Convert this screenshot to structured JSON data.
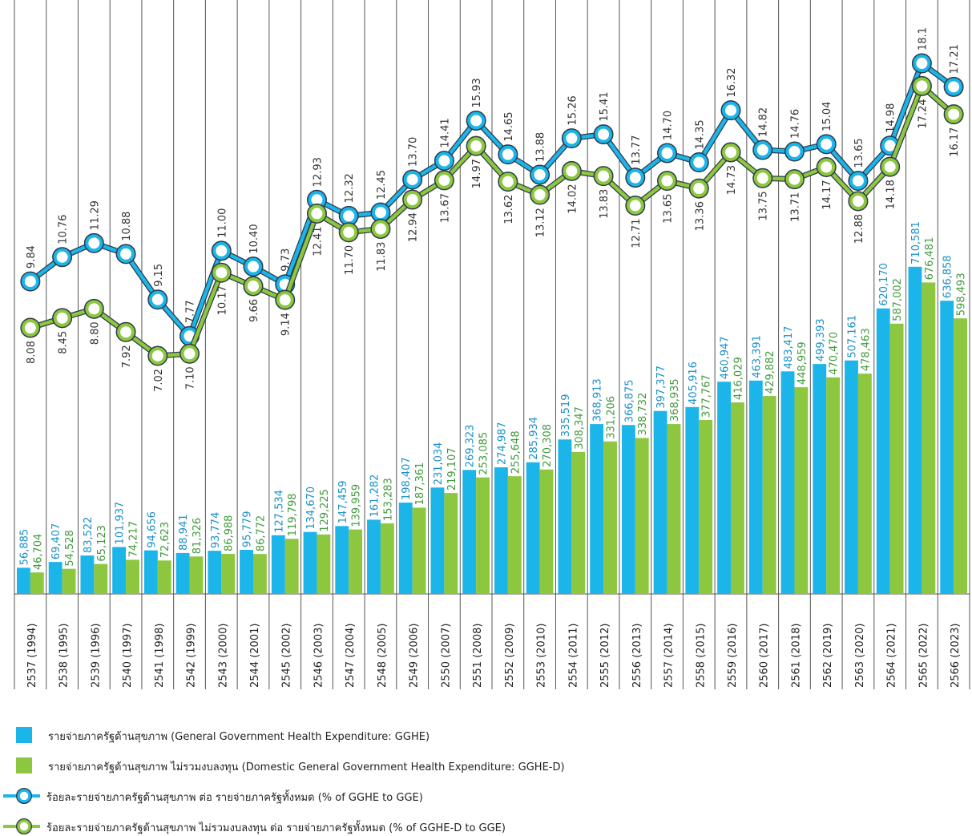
{
  "chart_data": {
    "type": "bar",
    "categories": [
      "2537 (1994)",
      "2538 (1995)",
      "2539 (1996)",
      "2540 (1997)",
      "2541 (1998)",
      "2542 (1999)",
      "2543 (2000)",
      "2544 (2001)",
      "2545 (2002)",
      "2546 (2003)",
      "2547 (2004)",
      "2548 (2005)",
      "2549 (2006)",
      "2550 (2007)",
      "2551 (2008)",
      "2552 (2009)",
      "2553 (2010)",
      "2554 (2011)",
      "2555 (2012)",
      "2556 (2013)",
      "2557 (2014)",
      "2558 (2015)",
      "2559 (2016)",
      "2560 (2017)",
      "2561 (2018)",
      "2562 (2019)",
      "2563 (2020)",
      "2564 (2021)",
      "2565 (2022)",
      "2566 (2023)"
    ],
    "ylim": [
      0,
      1290000
    ],
    "y2lim": [
      -2,
      20.5
    ],
    "series": [
      {
        "name": "รายจ่ายภาครัฐด้านสุขภาพ (General Government  Health Expenditure: GGHE)",
        "type": "bar",
        "color": "#1cb5ea",
        "label_color": "#1990c8",
        "values": [
          56885,
          69407,
          83522,
          101937,
          94656,
          88941,
          93774,
          95779,
          127534,
          134670,
          147459,
          161282,
          198407,
          231034,
          269323,
          274987,
          285934,
          335519,
          368913,
          366875,
          397377,
          405916,
          460947,
          463391,
          483417,
          499393,
          507161,
          620170,
          710581,
          636858
        ],
        "value_labels": [
          "56,885",
          "69,407",
          "83,522",
          "101,937",
          "94,656",
          "88,941",
          "93,774",
          "95,779",
          "127,534",
          "134,670",
          "147,459",
          "161,282",
          "198,407",
          "231,034",
          "269,323",
          "274,987",
          "285,934",
          "335,519",
          "368,913",
          "366,875",
          "397,377",
          "405,916",
          "460,947",
          "463,391",
          "483,417",
          "499,393",
          "507,161",
          "620,170",
          "710,581",
          "636,858"
        ]
      },
      {
        "name": "รายจ่ายภาครัฐด้านสุขภาพ ไม่รวมงบลงทุน (Domestic General Government  Health Expenditure: GGHE-D)",
        "type": "bar",
        "color": "#8dc63f",
        "label_color": "#3f9a3a",
        "values": [
          46704,
          54528,
          65123,
          74217,
          72623,
          81326,
          86988,
          86772,
          119798,
          129225,
          139959,
          153283,
          187361,
          219107,
          253085,
          255648,
          270308,
          308347,
          331206,
          338732,
          368935,
          377767,
          416029,
          429882,
          448959,
          470470,
          478463,
          587002,
          676481,
          598493
        ],
        "value_labels": [
          "46,704",
          "54,528",
          "65,123",
          "74,217",
          "72,623",
          "81,326",
          "86,988",
          "86,772",
          "119,798",
          "129,225",
          "139,959",
          "153,283",
          "187,361",
          "219,107",
          "253,085",
          "255,648",
          "270,308",
          "308,347",
          "331,206",
          "338,732",
          "368,935",
          "377,767",
          "416,029",
          "429,882",
          "448,959",
          "470,470",
          "478,463",
          "587,002",
          "676,481",
          "598,493"
        ]
      },
      {
        "name": "ร้อยละรายจ่ายภาครัฐด้านสุขภาพ ต่อ รายจ่ายภาครัฐทั้งหมด (% of GGHE to GGE)",
        "type": "line",
        "axis": "y2",
        "color": "#1cb5ea",
        "label_color": "#333333",
        "values": [
          9.84,
          10.76,
          11.29,
          10.88,
          9.15,
          7.77,
          11.0,
          10.4,
          9.73,
          12.93,
          12.32,
          12.45,
          13.7,
          14.41,
          15.93,
          14.65,
          13.88,
          15.26,
          15.41,
          13.77,
          14.7,
          14.35,
          16.32,
          14.82,
          14.76,
          15.04,
          13.65,
          14.98,
          18.1,
          17.21
        ],
        "value_labels": [
          "9.84",
          "10.76",
          "11.29",
          "10.88",
          "9.15",
          "7.77",
          "11.00",
          "10.40",
          "9.73",
          "12.93",
          "12.32",
          "12.45",
          "13.70",
          "14.41",
          "15.93",
          "14.65",
          "13.88",
          "15.26",
          "15.41",
          "13.77",
          "14.70",
          "14.35",
          "16.32",
          "14.82",
          "14.76",
          "15.04",
          "13.65",
          "14.98",
          "18.1",
          "17.21"
        ]
      },
      {
        "name": "ร้อยละรายจ่ายภาครัฐด้านสุขภาพ ไม่รวมงบลงทุน ต่อ รายจ่ายภาครัฐทั้งหมด (% of GGHE-D to GGE)",
        "type": "line",
        "axis": "y2",
        "color": "#8dc63f",
        "label_color": "#333333",
        "values": [
          8.08,
          8.45,
          8.8,
          7.92,
          7.02,
          7.1,
          10.17,
          9.66,
          9.14,
          12.41,
          11.7,
          11.83,
          12.94,
          13.67,
          14.97,
          13.62,
          13.12,
          14.02,
          13.83,
          12.71,
          13.65,
          13.36,
          14.73,
          13.75,
          13.71,
          14.17,
          12.88,
          14.18,
          17.24,
          16.17
        ],
        "value_labels": [
          "8.08",
          "8.45",
          "8.80",
          "7.92",
          "7.02",
          "7.10",
          "10.17",
          "9.66",
          "9.14",
          "12.41",
          "11.70",
          "11.83",
          "12.94",
          "13.67",
          "14.97",
          "13.62",
          "13.12",
          "14.02",
          "13.83",
          "12.71",
          "13.65",
          "13.36",
          "14.73",
          "13.75",
          "13.71",
          "14.17",
          "12.88",
          "14.18",
          "17.24",
          "16.17"
        ]
      }
    ]
  }
}
